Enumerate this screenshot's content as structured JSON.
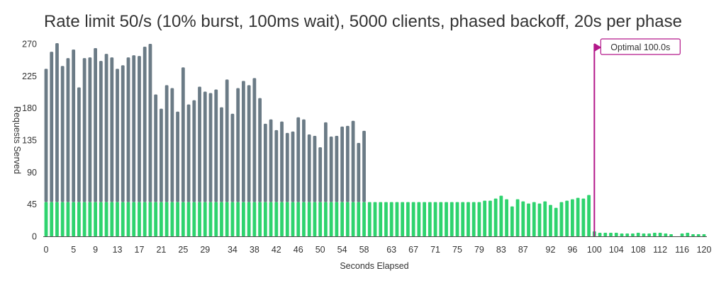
{
  "chart_data": {
    "type": "bar",
    "stacked": true,
    "title": "Rate limit 50/s (10% burst, 100ms wait), 5000 clients, phased backoff, 20s per phase",
    "xlabel": "Seconds Elapsed",
    "ylabel": "Requests Served",
    "xlim": [
      0,
      120
    ],
    "ylim": [
      0,
      270
    ],
    "yticks": [
      0,
      45,
      90,
      135,
      180,
      225,
      270
    ],
    "xticks": [
      0,
      5,
      9,
      13,
      17,
      21,
      25,
      29,
      34,
      38,
      42,
      46,
      50,
      54,
      58,
      63,
      67,
      71,
      75,
      79,
      83,
      87,
      92,
      96,
      100,
      104,
      108,
      112,
      116,
      120
    ],
    "x": [
      0,
      1,
      2,
      3,
      4,
      5,
      6,
      7,
      8,
      9,
      10,
      11,
      12,
      13,
      14,
      15,
      16,
      17,
      18,
      19,
      20,
      21,
      22,
      23,
      24,
      25,
      26,
      27,
      28,
      29,
      30,
      31,
      32,
      33,
      34,
      35,
      36,
      37,
      38,
      39,
      40,
      41,
      42,
      43,
      44,
      45,
      46,
      47,
      48,
      49,
      50,
      51,
      52,
      53,
      54,
      55,
      56,
      57,
      58,
      59,
      60,
      61,
      62,
      63,
      64,
      65,
      66,
      67,
      68,
      69,
      70,
      71,
      72,
      73,
      74,
      75,
      76,
      77,
      78,
      79,
      80,
      81,
      82,
      83,
      84,
      85,
      86,
      87,
      88,
      89,
      90,
      91,
      92,
      93,
      94,
      95,
      96,
      97,
      98,
      99,
      100,
      101,
      102,
      103,
      104,
      105,
      106,
      107,
      108,
      109,
      110,
      111,
      112,
      113,
      114,
      115,
      116,
      117,
      118,
      119,
      120
    ],
    "colors": {
      "successful": "#2ed36e",
      "excess": "#6b7b86",
      "marker": "#b3188a"
    },
    "series": [
      {
        "values": [
          48,
          48,
          48,
          48,
          48,
          48,
          48,
          48,
          48,
          48,
          48,
          48,
          48,
          48,
          48,
          48,
          48,
          48,
          48,
          48,
          48,
          48,
          48,
          48,
          48,
          48,
          48,
          48,
          48,
          48,
          48,
          48,
          48,
          48,
          48,
          48,
          48,
          48,
          48,
          48,
          48,
          48,
          48,
          48,
          48,
          48,
          48,
          48,
          48,
          48,
          48,
          48,
          48,
          48,
          48,
          48,
          48,
          48,
          48,
          48,
          48,
          48,
          48,
          48,
          48,
          48,
          48,
          48,
          48,
          48,
          48,
          48,
          48,
          48,
          48,
          48,
          48,
          48,
          48,
          48,
          50,
          50,
          53,
          57,
          52,
          42,
          52,
          49,
          46,
          48,
          46,
          49,
          44,
          40,
          48,
          50,
          52,
          54,
          53,
          58,
          7,
          5,
          5,
          5,
          5,
          4,
          4,
          4,
          5,
          4,
          4,
          5,
          5,
          4,
          3,
          0,
          4,
          5,
          3,
          3,
          3
        ]
      },
      {
        "values": [
          187,
          211,
          223,
          191,
          202,
          214,
          161,
          202,
          203,
          216,
          198,
          208,
          203,
          187,
          192,
          203,
          206,
          205,
          218,
          222,
          151,
          131,
          164,
          160,
          127,
          189,
          137,
          143,
          162,
          155,
          153,
          158,
          133,
          172,
          124,
          160,
          170,
          164,
          174,
          146,
          110,
          116,
          101,
          113,
          97,
          99,
          119,
          116,
          95,
          93,
          77,
          112,
          92,
          93,
          106,
          107,
          114,
          83,
          100,
          0,
          0,
          0,
          0,
          0,
          0,
          0,
          0,
          0,
          0,
          0,
          0,
          0,
          0,
          0,
          0,
          0,
          0,
          0,
          0,
          0,
          0,
          0,
          0,
          0,
          0,
          0,
          0,
          0,
          0,
          0,
          0,
          0,
          0,
          0,
          0,
          0,
          0,
          0,
          0,
          0,
          0,
          0,
          0,
          0,
          0,
          0,
          0,
          0,
          0,
          0,
          0,
          0,
          0,
          0,
          0,
          0,
          0,
          0,
          0,
          0,
          0
        ]
      }
    ],
    "annotation": {
      "x": 100,
      "label": "Optimal 100.0s"
    }
  }
}
